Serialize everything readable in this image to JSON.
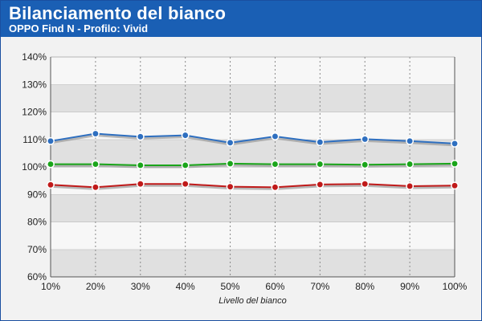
{
  "header": {
    "title": "Bilanciamento del bianco",
    "subtitle": "OPPO Find N - Profilo: Vivid"
  },
  "chart_data": {
    "type": "line",
    "title": "Bilanciamento del bianco",
    "subtitle": "OPPO Find N - Profilo: Vivid",
    "xlabel": "Livello del bianco",
    "ylabel": "",
    "categories": [
      "10%",
      "20%",
      "30%",
      "40%",
      "50%",
      "60%",
      "70%",
      "80%",
      "90%",
      "100%"
    ],
    "ylim": [
      60,
      140
    ],
    "yticks": [
      60,
      70,
      80,
      90,
      100,
      110,
      120,
      130,
      140
    ],
    "ytick_labels": [
      "60%",
      "70%",
      "80%",
      "90%",
      "100%",
      "110%",
      "120%",
      "130%",
      "140%"
    ],
    "grid": true,
    "colors": {
      "header_bg": "#1a5fb4",
      "band_dark": "#e0e0e0",
      "band_light": "#f7f7f7"
    },
    "series": [
      {
        "color": "#2e6fc0",
        "values": [
          109.4,
          112.1,
          111.0,
          111.5,
          108.8,
          111.1,
          109.0,
          110.1,
          109.4,
          108.5
        ]
      },
      {
        "color": "#1aa51a",
        "values": [
          101.0,
          101.0,
          100.6,
          100.6,
          101.2,
          101.0,
          101.0,
          100.8,
          101.0,
          101.2
        ]
      },
      {
        "color": "#c01a1a",
        "values": [
          93.5,
          92.6,
          93.8,
          93.8,
          92.8,
          92.6,
          93.6,
          93.8,
          93.0,
          93.2
        ]
      }
    ]
  }
}
